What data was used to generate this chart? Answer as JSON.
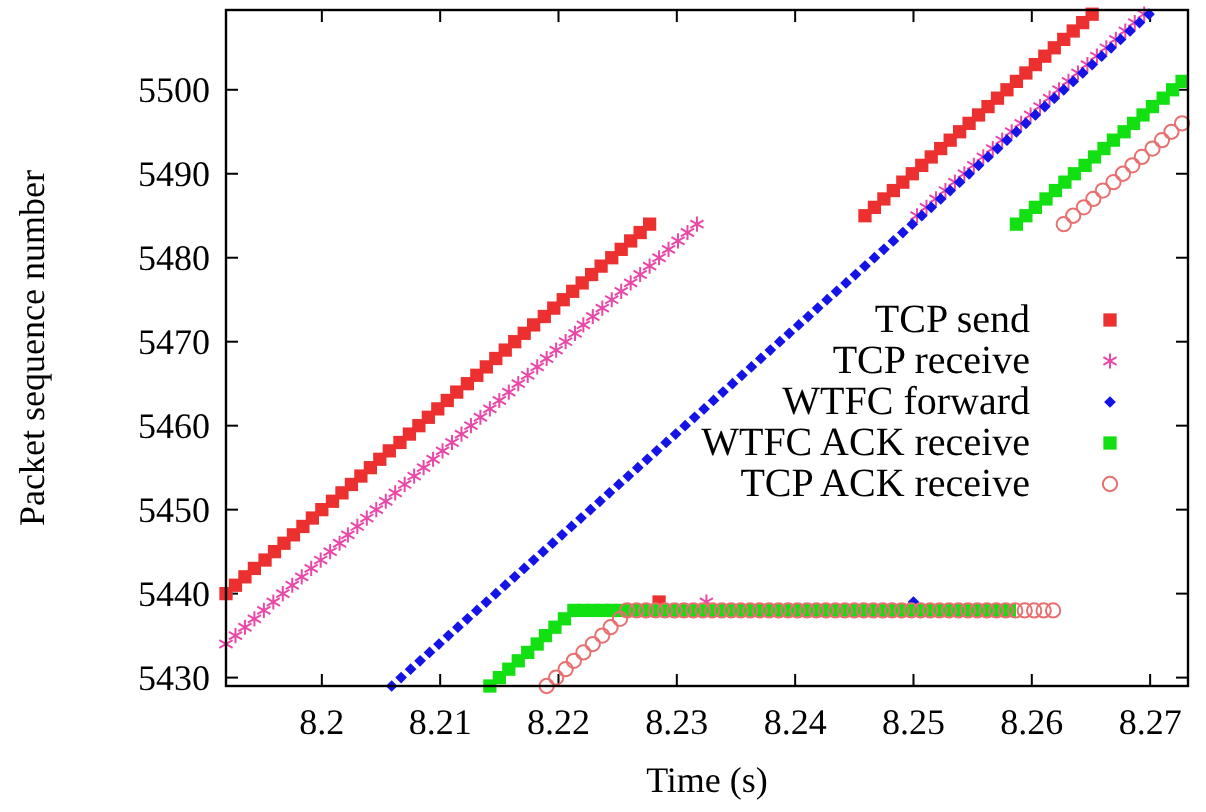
{
  "chart_data": {
    "type": "scatter",
    "xlabel": "Time (s)",
    "ylabel": "Packet sequence number",
    "xlim": [
      8.1919,
      8.2732
    ],
    "ylim": [
      5429,
      5509.5
    ],
    "xticks": [
      8.2,
      8.21,
      8.22,
      8.23,
      8.24,
      8.25,
      8.26,
      8.27
    ],
    "yticks": [
      5430,
      5440,
      5450,
      5460,
      5470,
      5480,
      5490,
      5500
    ],
    "grid": false,
    "legend": "right",
    "series": [
      {
        "name": "TCP send",
        "color": "#ec2f2f",
        "marker": "square",
        "x": [
          8.1919,
          8.1927,
          8.1935,
          8.1943,
          8.1952,
          8.196,
          8.1968,
          8.1976,
          8.1984,
          8.1992,
          8.2,
          8.2009,
          8.2017,
          8.2025,
          8.2033,
          8.2041,
          8.2049,
          8.2057,
          8.2066,
          8.2074,
          8.2082,
          8.209,
          8.2098,
          8.2106,
          8.2114,
          8.2123,
          8.2131,
          8.2139,
          8.2147,
          8.2155,
          8.2163,
          8.2171,
          8.2179,
          8.2188,
          8.2196,
          8.2204,
          8.2212,
          8.222,
          8.2228,
          8.2236,
          8.2245,
          8.2253,
          8.2261,
          8.2269,
          8.2277,
          8.2285,
          8.2459,
          8.2467,
          8.2475,
          8.2483,
          8.2491,
          8.2499,
          8.2507,
          8.2515,
          8.2523,
          8.2531,
          8.2539,
          8.2547,
          8.2555,
          8.2563,
          8.2571,
          8.2579,
          8.2587,
          8.2595,
          8.2603,
          8.2611,
          8.2619,
          8.2627,
          8.2635,
          8.2643,
          8.2651
        ],
        "values": [
          5440,
          5441,
          5442,
          5443,
          5444,
          5445,
          5446,
          5447,
          5448,
          5449,
          5450,
          5451,
          5452,
          5453,
          5454,
          5455,
          5456,
          5457,
          5458,
          5459,
          5460,
          5461,
          5462,
          5463,
          5464,
          5465,
          5466,
          5467,
          5468,
          5469,
          5470,
          5471,
          5472,
          5473,
          5474,
          5475,
          5476,
          5477,
          5478,
          5479,
          5480,
          5481,
          5482,
          5483,
          5484,
          5439,
          5485,
          5486,
          5487,
          5488,
          5489,
          5490,
          5491,
          5492,
          5493,
          5494,
          5495,
          5496,
          5497,
          5498,
          5499,
          5500,
          5501,
          5502,
          5503,
          5504,
          5505,
          5506,
          5507,
          5508,
          5509
        ]
      },
      {
        "name": "TCP receive",
        "color": "#e848a8",
        "marker": "cross",
        "x": [
          8.1919,
          8.1927,
          8.1935,
          8.1943,
          8.1951,
          8.1959,
          8.1967,
          8.1975,
          8.1983,
          8.1991,
          8.1999,
          8.2007,
          8.2015,
          8.2022,
          8.203,
          8.2038,
          8.2046,
          8.2054,
          8.2062,
          8.207,
          8.2078,
          8.2086,
          8.2094,
          8.2102,
          8.211,
          8.2118,
          8.2126,
          8.2134,
          8.2142,
          8.215,
          8.2158,
          8.2166,
          8.2174,
          8.2182,
          8.219,
          8.2198,
          8.2206,
          8.2214,
          8.2221,
          8.2229,
          8.2237,
          8.2245,
          8.2253,
          8.2261,
          8.2269,
          8.2277,
          8.2285,
          8.2293,
          8.2301,
          8.2309,
          8.2317,
          8.2325,
          8.2503,
          8.2511,
          8.2519,
          8.2527,
          8.2535,
          8.2543,
          8.2551,
          8.2559,
          8.2567,
          8.2575,
          8.2583,
          8.2591,
          8.2599,
          8.2607,
          8.2615,
          8.2623,
          8.2631,
          8.2639,
          8.2647,
          8.2655,
          8.2663,
          8.2671,
          8.2679,
          8.2687,
          8.2695
        ],
        "values": [
          5434,
          5435,
          5436,
          5437,
          5438,
          5439,
          5440,
          5441,
          5442,
          5443,
          5444,
          5445,
          5446,
          5447,
          5448,
          5449,
          5450,
          5451,
          5452,
          5453,
          5454,
          5455,
          5456,
          5457,
          5458,
          5459,
          5460,
          5461,
          5462,
          5463,
          5464,
          5465,
          5466,
          5467,
          5468,
          5469,
          5470,
          5471,
          5472,
          5473,
          5474,
          5475,
          5476,
          5477,
          5478,
          5479,
          5480,
          5481,
          5482,
          5483,
          5484,
          5439,
          5485,
          5486,
          5487,
          5488,
          5489,
          5490,
          5491,
          5492,
          5493,
          5494,
          5495,
          5496,
          5497,
          5498,
          5499,
          5500,
          5501,
          5502,
          5503,
          5504,
          5505,
          5506,
          5507,
          5508,
          5509
        ]
      },
      {
        "name": "WTFC forward",
        "color": "#1414e6",
        "marker": "diamond",
        "x": [
          8.2059,
          8.2067,
          8.2075,
          8.2083,
          8.2091,
          8.2099,
          8.2107,
          8.2115,
          8.2123,
          8.2131,
          8.2139,
          8.2147,
          8.2155,
          8.2163,
          8.2171,
          8.2179,
          8.2187,
          8.2195,
          8.2203,
          8.2211,
          8.2219,
          8.2227,
          8.2235,
          8.2243,
          8.2251,
          8.2259,
          8.2267,
          8.2275,
          8.2283,
          8.2291,
          8.2299,
          8.2307,
          8.2315,
          8.2323,
          8.2331,
          8.2339,
          8.2347,
          8.2355,
          8.2363,
          8.2371,
          8.2379,
          8.2387,
          8.2395,
          8.2403,
          8.2411,
          8.2419,
          8.2427,
          8.2435,
          8.2443,
          8.2451,
          8.2459,
          8.2467,
          8.2475,
          8.2483,
          8.2491,
          8.2499,
          8.2507,
          8.2515,
          8.2523,
          8.2531,
          8.2539,
          8.2547,
          8.2555,
          8.2563,
          8.2571,
          8.2579,
          8.2587,
          8.2595,
          8.2603,
          8.2611,
          8.2619,
          8.2627,
          8.2635,
          8.2643,
          8.2651,
          8.2659,
          8.2667,
          8.2675,
          8.2683,
          8.2691,
          8.2699,
          8.25
        ],
        "values": [
          5429,
          5430,
          5431,
          5432,
          5433,
          5434,
          5435,
          5436,
          5437,
          5438,
          5439,
          5440,
          5441,
          5442,
          5443,
          5444,
          5445,
          5446,
          5447,
          5448,
          5449,
          5450,
          5451,
          5452,
          5453,
          5454,
          5455,
          5456,
          5457,
          5458,
          5459,
          5460,
          5461,
          5462,
          5463,
          5464,
          5465,
          5466,
          5467,
          5468,
          5469,
          5470,
          5471,
          5472,
          5473,
          5474,
          5475,
          5476,
          5477,
          5478,
          5479,
          5480,
          5481,
          5482,
          5483,
          5484,
          5485,
          5486,
          5487,
          5488,
          5489,
          5490,
          5491,
          5492,
          5493,
          5494,
          5495,
          5496,
          5497,
          5498,
          5499,
          5500,
          5501,
          5502,
          5503,
          5504,
          5505,
          5506,
          5507,
          5508,
          5509,
          5439
        ]
      },
      {
        "name": "WTFC ACK receive",
        "color": "#12e012",
        "marker": "square",
        "x": [
          8.2142,
          8.215,
          8.2158,
          8.2166,
          8.2174,
          8.2182,
          8.2189,
          8.2197,
          8.2205,
          8.2213,
          8.2221,
          8.2229,
          8.2237,
          8.2245,
          8.2253,
          8.2261,
          8.2269,
          8.2277,
          8.2285,
          8.2293,
          8.2301,
          8.2309,
          8.2317,
          8.2325,
          8.2333,
          8.2341,
          8.2349,
          8.2357,
          8.2365,
          8.2373,
          8.2381,
          8.2389,
          8.2397,
          8.2405,
          8.2413,
          8.2421,
          8.2429,
          8.2437,
          8.2445,
          8.2453,
          8.2461,
          8.2469,
          8.2477,
          8.2485,
          8.2493,
          8.2501,
          8.2509,
          8.2517,
          8.2525,
          8.2533,
          8.2541,
          8.2549,
          8.2557,
          8.2565,
          8.2573,
          8.2581,
          8.2587,
          8.2595,
          8.2603,
          8.2612,
          8.262,
          8.2628,
          8.2636,
          8.2645,
          8.2653,
          8.2661,
          8.2669,
          8.2678,
          8.2686,
          8.2694,
          8.2702,
          8.2711,
          8.2719,
          8.2727
        ],
        "values": [
          5429,
          5430,
          5431,
          5432,
          5433,
          5434,
          5435,
          5436,
          5437,
          5438,
          5438,
          5438,
          5438,
          5438,
          5438,
          5438,
          5438,
          5438,
          5438,
          5438,
          5438,
          5438,
          5438,
          5438,
          5438,
          5438,
          5438,
          5438,
          5438,
          5438,
          5438,
          5438,
          5438,
          5438,
          5438,
          5438,
          5438,
          5438,
          5438,
          5438,
          5438,
          5438,
          5438,
          5438,
          5438,
          5438,
          5438,
          5438,
          5438,
          5438,
          5438,
          5438,
          5438,
          5438,
          5438,
          5438,
          5484,
          5485,
          5486,
          5487,
          5488,
          5489,
          5490,
          5491,
          5492,
          5493,
          5494,
          5495,
          5496,
          5497,
          5498,
          5499,
          5500,
          5501
        ]
      },
      {
        "name": "TCP ACK receive",
        "color": "#e87070",
        "marker": "circle",
        "x": [
          8.219,
          8.2198,
          8.2206,
          8.2213,
          8.2221,
          8.2229,
          8.2237,
          8.2244,
          8.2252,
          8.2258,
          8.2266,
          8.2274,
          8.2282,
          8.229,
          8.2298,
          8.2306,
          8.2314,
          8.2322,
          8.233,
          8.2338,
          8.2346,
          8.2354,
          8.2362,
          8.237,
          8.2378,
          8.2386,
          8.2394,
          8.2402,
          8.241,
          8.2418,
          8.2426,
          8.2434,
          8.2442,
          8.245,
          8.2458,
          8.2466,
          8.2474,
          8.2482,
          8.249,
          8.2498,
          8.2506,
          8.2514,
          8.2522,
          8.253,
          8.2538,
          8.2546,
          8.2554,
          8.2562,
          8.257,
          8.2578,
          8.2586,
          8.2594,
          8.2602,
          8.261,
          8.2618,
          8.2627,
          8.2635,
          8.2644,
          8.2652,
          8.266,
          8.2669,
          8.2677,
          8.2685,
          8.2693,
          8.2702,
          8.271,
          8.2718,
          8.2727
        ],
        "values": [
          5429,
          5430,
          5431,
          5432,
          5433,
          5434,
          5435,
          5436,
          5437,
          5438,
          5438,
          5438,
          5438,
          5438,
          5438,
          5438,
          5438,
          5438,
          5438,
          5438,
          5438,
          5438,
          5438,
          5438,
          5438,
          5438,
          5438,
          5438,
          5438,
          5438,
          5438,
          5438,
          5438,
          5438,
          5438,
          5438,
          5438,
          5438,
          5438,
          5438,
          5438,
          5438,
          5438,
          5438,
          5438,
          5438,
          5438,
          5438,
          5438,
          5438,
          5438,
          5438,
          5438,
          5438,
          5438,
          5484,
          5485,
          5486,
          5487,
          5488,
          5489,
          5490,
          5491,
          5492,
          5493,
          5494,
          5495,
          5496
        ]
      }
    ]
  }
}
